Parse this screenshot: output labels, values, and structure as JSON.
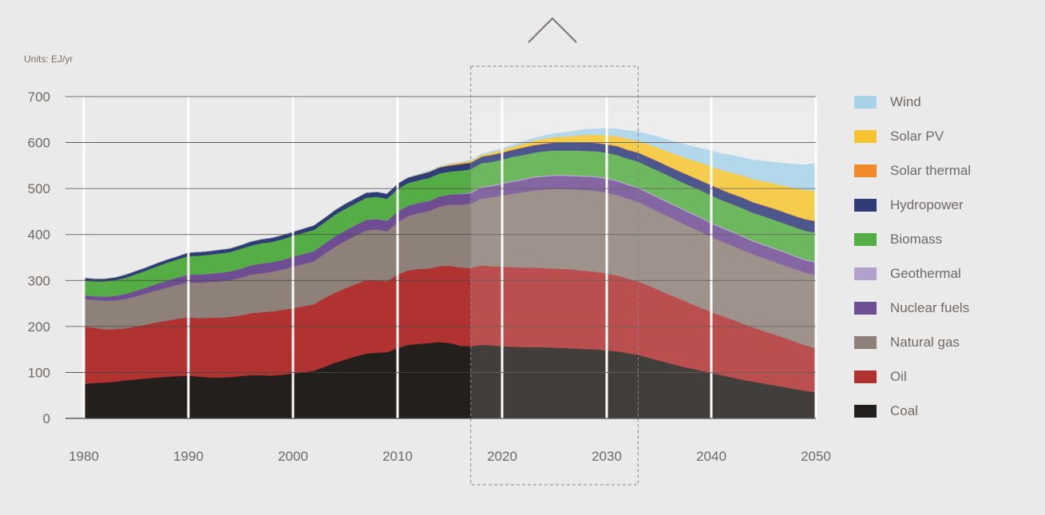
{
  "chart_data": {
    "type": "area",
    "units_label": "Units: EJ/yr",
    "ylim": [
      0,
      700
    ],
    "xlim": [
      1980,
      2050
    ],
    "y_ticks": [
      0,
      100,
      200,
      300,
      400,
      500,
      600,
      700
    ],
    "x_ticks": [
      1980,
      1990,
      2000,
      2010,
      2020,
      2030,
      2040,
      2050
    ],
    "projection_start": 2017,
    "highlight_range": [
      2017,
      2033
    ],
    "legend_placement": "right",
    "grid": "horizontal and vertical",
    "x": [
      1980,
      1981,
      1982,
      1983,
      1984,
      1985,
      1986,
      1987,
      1988,
      1989,
      1990,
      1991,
      1992,
      1993,
      1994,
      1995,
      1996,
      1997,
      1998,
      1999,
      2000,
      2001,
      2002,
      2003,
      2004,
      2005,
      2006,
      2007,
      2008,
      2009,
      2010,
      2011,
      2012,
      2013,
      2014,
      2015,
      2016,
      2017,
      2018,
      2019,
      2020,
      2021,
      2022,
      2023,
      2024,
      2025,
      2026,
      2027,
      2028,
      2029,
      2030,
      2031,
      2032,
      2033,
      2034,
      2035,
      2036,
      2037,
      2038,
      2039,
      2040,
      2041,
      2042,
      2043,
      2044,
      2045,
      2046,
      2047,
      2048,
      2049,
      2050
    ],
    "series": [
      {
        "name": "Coal",
        "color": "#231f1c",
        "values": [
          75,
          77,
          78,
          80,
          83,
          85,
          87,
          89,
          91,
          92,
          93,
          91,
          89,
          89,
          90,
          92,
          94,
          94,
          93,
          95,
          98,
          100,
          104,
          112,
          121,
          128,
          135,
          141,
          143,
          144,
          153,
          160,
          162,
          164,
          166,
          164,
          158,
          157,
          160,
          159,
          157,
          156,
          155,
          155,
          155,
          154,
          153,
          152,
          151,
          150,
          148,
          146,
          142,
          138,
          132,
          126,
          120,
          114,
          109,
          104,
          99,
          94,
          89,
          84,
          80,
          76,
          72,
          68,
          64,
          60,
          57
        ]
      },
      {
        "name": "Oil",
        "color": "#b03231",
        "values": [
          125,
          120,
          116,
          114,
          113,
          115,
          117,
          120,
          122,
          125,
          127,
          127,
          130,
          130,
          131,
          132,
          135,
          137,
          140,
          141,
          142,
          144,
          144,
          150,
          152,
          155,
          157,
          160,
          158,
          154,
          160,
          162,
          163,
          162,
          165,
          168,
          170,
          170,
          173,
          172,
          173,
          173,
          173,
          173,
          172,
          172,
          172,
          171,
          170,
          169,
          167,
          165,
          162,
          160,
          157,
          153,
          149,
          146,
          141,
          137,
          132,
          129,
          126,
          122,
          118,
          114,
          111,
          107,
          103,
          99,
          95
        ]
      },
      {
        "name": "Natural gas",
        "color": "#8e817a",
        "values": [
          60,
          61,
          62,
          63,
          64,
          66,
          68,
          70,
          72,
          74,
          76,
          77,
          78,
          79,
          80,
          82,
          84,
          85,
          86,
          88,
          90,
          92,
          94,
          96,
          100,
          103,
          106,
          108,
          110,
          109,
          114,
          118,
          122,
          125,
          130,
          133,
          137,
          140,
          145,
          150,
          155,
          160,
          164,
          168,
          171,
          173,
          174,
          175,
          176,
          176,
          176,
          175,
          174,
          173,
          171,
          170,
          169,
          167,
          166,
          165,
          163,
          162,
          161,
          160,
          159,
          159,
          158,
          158,
          158,
          158,
          160
        ]
      },
      {
        "name": "Nuclear fuels",
        "color": "#6f4d93",
        "values": [
          8,
          8,
          9,
          10,
          11,
          12,
          13,
          14,
          15,
          16,
          17,
          18,
          18,
          19,
          19,
          20,
          20,
          21,
          21,
          21,
          22,
          22,
          22,
          22,
          23,
          23,
          23,
          23,
          23,
          23,
          23,
          23,
          22,
          22,
          22,
          22,
          23,
          23,
          24,
          24,
          25,
          26,
          27,
          28,
          28,
          29,
          29,
          29,
          29,
          30,
          30,
          30,
          30,
          30,
          30,
          30,
          30,
          30,
          30,
          30,
          30,
          29,
          29,
          29,
          28,
          28,
          28,
          28,
          27,
          27,
          27
        ]
      },
      {
        "name": "Geothermal",
        "color": "#b3a1cd",
        "values": [
          0,
          0,
          0,
          0,
          0,
          0,
          0,
          0,
          0,
          0,
          0,
          0,
          0,
          0,
          0,
          0,
          0,
          0,
          0,
          0,
          0,
          0,
          0,
          0,
          0,
          0,
          0,
          0,
          0,
          0,
          0,
          0,
          0,
          0,
          0,
          0,
          1,
          2,
          2,
          2,
          2,
          2,
          2,
          2,
          2,
          2,
          2,
          2,
          2,
          2,
          2,
          2,
          2,
          2,
          2,
          2,
          2,
          2,
          2,
          2,
          2,
          2,
          2,
          2,
          2,
          2,
          2,
          2,
          2,
          2,
          2
        ]
      },
      {
        "name": "Biomass",
        "color": "#55ad45",
        "values": [
          32,
          32,
          33,
          34,
          35,
          36,
          37,
          38,
          39,
          39,
          40,
          41,
          41,
          42,
          42,
          43,
          43,
          44,
          44,
          45,
          45,
          46,
          46,
          46,
          47,
          47,
          47,
          48,
          48,
          48,
          49,
          49,
          49,
          50,
          50,
          50,
          50,
          50,
          51,
          51,
          51,
          52,
          52,
          52,
          53,
          53,
          53,
          54,
          54,
          54,
          55,
          55,
          55,
          56,
          56,
          57,
          57,
          57,
          58,
          58,
          59,
          59,
          59,
          60,
          60,
          61,
          61,
          61,
          62,
          62,
          63
        ]
      },
      {
        "name": "Hydropower",
        "color": "#303c78",
        "values": [
          6,
          6,
          6,
          6,
          7,
          7,
          7,
          7,
          7,
          7,
          8,
          8,
          8,
          8,
          8,
          8,
          9,
          9,
          9,
          9,
          9,
          9,
          10,
          10,
          10,
          11,
          11,
          11,
          11,
          11,
          12,
          12,
          12,
          13,
          13,
          13,
          14,
          14,
          14,
          15,
          15,
          15,
          16,
          16,
          16,
          17,
          17,
          17,
          18,
          18,
          18,
          19,
          19,
          19,
          20,
          20,
          20,
          21,
          21,
          21,
          22,
          22,
          22,
          23,
          23,
          23,
          24,
          24,
          24,
          25,
          25
        ]
      },
      {
        "name": "Solar thermal",
        "color": "#f18b2a",
        "values": [
          0,
          0,
          0,
          0,
          0,
          0,
          0,
          0,
          0,
          0,
          0,
          0,
          0,
          0,
          0,
          0,
          0,
          0,
          0,
          0,
          0,
          0,
          0,
          0,
          0,
          0,
          0,
          0,
          0,
          0,
          0,
          0,
          0,
          0,
          0,
          1,
          1,
          1,
          1,
          1,
          1,
          1,
          1,
          1,
          1,
          1,
          1,
          1,
          1,
          1,
          1,
          1,
          1,
          1,
          1,
          1,
          1,
          1,
          1,
          1,
          1,
          1,
          1,
          1,
          1,
          1,
          1,
          1,
          1,
          1,
          1
        ]
      },
      {
        "name": "Solar PV",
        "color": "#f5c430",
        "values": [
          0,
          0,
          0,
          0,
          0,
          0,
          0,
          0,
          0,
          0,
          0,
          0,
          0,
          0,
          0,
          0,
          0,
          0,
          0,
          0,
          0,
          0,
          0,
          0,
          0,
          0,
          0,
          0,
          0,
          0,
          0,
          0,
          1,
          1,
          1,
          2,
          2,
          3,
          3,
          4,
          5,
          6,
          7,
          9,
          10,
          11,
          12,
          14,
          16,
          17,
          19,
          21,
          23,
          25,
          27,
          29,
          31,
          33,
          35,
          38,
          40,
          42,
          45,
          47,
          49,
          52,
          54,
          57,
          60,
          63,
          65
        ]
      },
      {
        "name": "Wind",
        "color": "#a7d2e8",
        "values": [
          0,
          0,
          0,
          0,
          0,
          0,
          0,
          0,
          0,
          0,
          0,
          0,
          0,
          0,
          0,
          0,
          0,
          0,
          0,
          0,
          0,
          0,
          0,
          0,
          0,
          0,
          0,
          0,
          0,
          0,
          0,
          1,
          1,
          1,
          1,
          1,
          1,
          2,
          2,
          3,
          3,
          4,
          5,
          6,
          7,
          8,
          9,
          10,
          12,
          13,
          15,
          16,
          18,
          20,
          22,
          24,
          26,
          28,
          30,
          32,
          34,
          36,
          38,
          40,
          42,
          44,
          46,
          49,
          52,
          55,
          60
        ]
      }
    ]
  }
}
